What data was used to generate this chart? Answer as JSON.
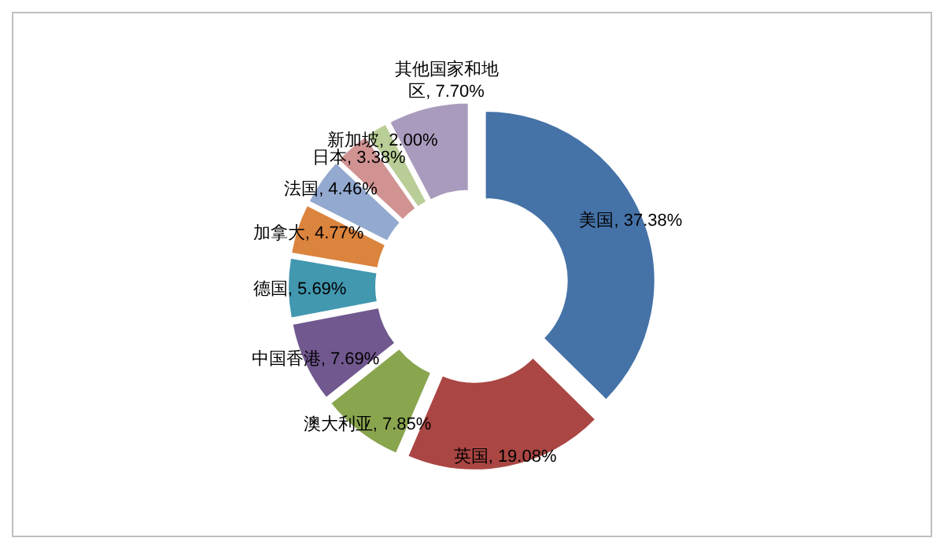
{
  "chart_data": {
    "type": "donut",
    "categories": [
      "美国",
      "英国",
      "澳大利亚",
      "中国香港",
      "德国",
      "加拿大",
      "法国",
      "日本",
      "新加坡",
      "其他国家和地区"
    ],
    "values": [
      37.38,
      19.08,
      7.85,
      7.69,
      5.69,
      4.77,
      4.46,
      3.38,
      2.0,
      7.7
    ],
    "value_labels": [
      "37.38%",
      "19.08%",
      "7.85%",
      "7.69%",
      "5.69%",
      "4.77%",
      "4.46%",
      "3.38%",
      "2.00%",
      "7.70%"
    ],
    "colors": [
      "#4572a7",
      "#aa4643",
      "#89a54e",
      "#71588f",
      "#4198af",
      "#db843d",
      "#93a9cf",
      "#d19392",
      "#b9cd96",
      "#a99bbd"
    ],
    "legend": false
  }
}
